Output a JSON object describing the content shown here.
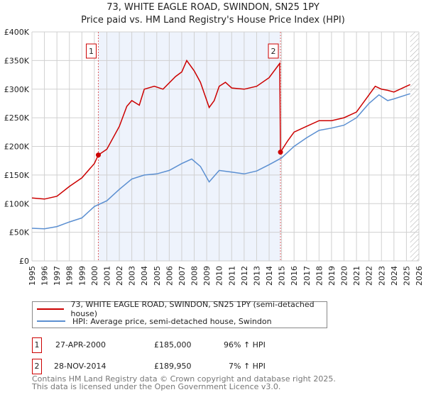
{
  "chart_data": {
    "type": "line",
    "title": "73, WHITE EAGLE ROAD, SWINDON, SN25 1PY",
    "subtitle": "Price paid vs. HM Land Registry's House Price Index (HPI)",
    "xlim": [
      1995,
      2026
    ],
    "ylim": [
      0,
      400000
    ],
    "x_ticks": [
      "1995",
      "1996",
      "1997",
      "1998",
      "1999",
      "2000",
      "2001",
      "2002",
      "2003",
      "2004",
      "2005",
      "2006",
      "2007",
      "2008",
      "2009",
      "2010",
      "2011",
      "2012",
      "2013",
      "2014",
      "2015",
      "2016",
      "2017",
      "2018",
      "2019",
      "2020",
      "2021",
      "2022",
      "2023",
      "2024",
      "2025",
      "2026"
    ],
    "y_ticks": [
      {
        "v": 0,
        "label": "£0"
      },
      {
        "v": 50000,
        "label": "£50K"
      },
      {
        "v": 100000,
        "label": "£100K"
      },
      {
        "v": 150000,
        "label": "£150K"
      },
      {
        "v": 200000,
        "label": "£200K"
      },
      {
        "v": 250000,
        "label": "£250K"
      },
      {
        "v": 300000,
        "label": "£300K"
      },
      {
        "v": 350000,
        "label": "£350K"
      },
      {
        "v": 400000,
        "label": "£400K"
      }
    ],
    "grid": true,
    "shaded_range": [
      2000.32,
      2014.91
    ],
    "hatched_from": 2025.3,
    "series": [
      {
        "name": "73, WHITE EAGLE ROAD, SWINDON, SN25 1PY (semi-detached house)",
        "color": "#cc0000",
        "x": [
          1995,
          1996,
          1997,
          1998,
          1999,
          2000,
          2000.32,
          2001,
          2002,
          2002.6,
          2003,
          2003.6,
          2004,
          2004.8,
          2005.5,
          2006.5,
          2007,
          2007.4,
          2008,
          2008.5,
          2009.2,
          2009.6,
          2010,
          2010.5,
          2011,
          2012,
          2013,
          2014,
          2014.85,
          2014.91,
          2015.5,
          2016,
          2017,
          2018,
          2019,
          2020,
          2021,
          2022,
          2022.5,
          2023,
          2023.5,
          2024,
          2025,
          2025.3
        ],
        "y": [
          110000,
          108000,
          113000,
          130000,
          145000,
          170000,
          185000,
          195000,
          235000,
          270000,
          280000,
          272000,
          300000,
          305000,
          300000,
          322000,
          330000,
          350000,
          332000,
          312000,
          268000,
          280000,
          305000,
          312000,
          302000,
          300000,
          305000,
          320000,
          345000,
          189950,
          210000,
          225000,
          235000,
          245000,
          245000,
          250000,
          260000,
          290000,
          305000,
          300000,
          298000,
          295000,
          305000,
          308000
        ]
      },
      {
        "name": "HPI: Average price, semi-detached house, Swindon",
        "color": "#5b8fd1",
        "x": [
          1995,
          1996,
          1997,
          1998,
          1999,
          2000,
          2001,
          2002,
          2003,
          2004,
          2005,
          2006,
          2007,
          2007.8,
          2008.5,
          2009.2,
          2010,
          2011,
          2012,
          2013,
          2014,
          2015,
          2016,
          2017,
          2018,
          2019,
          2020,
          2021,
          2022,
          2022.8,
          2023.5,
          2024,
          2025,
          2025.3
        ],
        "y": [
          57000,
          56000,
          60000,
          68000,
          75000,
          95000,
          105000,
          125000,
          143000,
          150000,
          152000,
          158000,
          170000,
          178000,
          165000,
          138000,
          158000,
          155000,
          152000,
          157000,
          168000,
          180000,
          200000,
          215000,
          228000,
          232000,
          237000,
          250000,
          275000,
          290000,
          280000,
          283000,
          290000,
          292000
        ]
      }
    ],
    "sales": [
      {
        "id": "1",
        "x": 2000.32,
        "y": 185000
      },
      {
        "id": "2",
        "x": 2014.91,
        "y": 189950
      }
    ]
  },
  "legend": {
    "property": "73, WHITE EAGLE ROAD, SWINDON, SN25 1PY (semi-detached house)",
    "hpi": "HPI: Average price, semi-detached house, Swindon"
  },
  "transactions": [
    {
      "id": "1",
      "date": "27-APR-2000",
      "price": "£185,000",
      "hpi": "96% ↑ HPI"
    },
    {
      "id": "2",
      "date": "28-NOV-2014",
      "price": "£189,950",
      "hpi": "7% ↑ HPI"
    }
  ],
  "footer": {
    "line1": "Contains HM Land Registry data © Crown copyright and database right 2025.",
    "line2": "This data is licensed under the Open Government Licence v3.0."
  }
}
